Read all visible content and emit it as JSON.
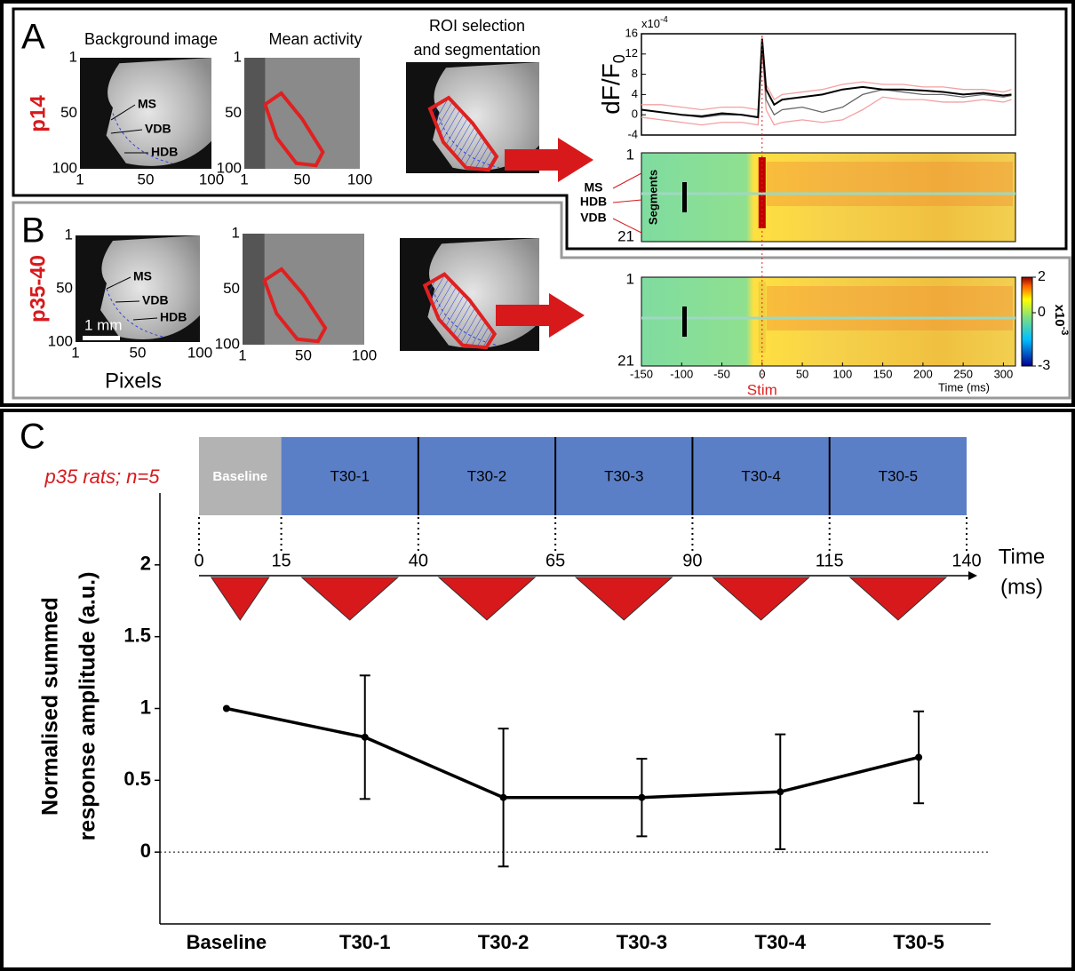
{
  "figure": {
    "panel_labels": [
      "A",
      "B",
      "C"
    ],
    "row_labels": [
      "p14",
      "p35-40"
    ],
    "image_titles": [
      "Background image",
      "Mean activity",
      "ROI selection",
      "and segmentation"
    ],
    "image_axis": [
      "1",
      "50",
      "100"
    ],
    "regions": [
      "MS",
      "VDB",
      "HDB"
    ],
    "scale_bar": "1 mm",
    "pixels_label": "Pixels",
    "heatmap": {
      "y_label": "Segments",
      "rows": [
        "1",
        "21"
      ],
      "segment_labels": [
        "MS",
        "HDB",
        "VDB"
      ],
      "xlim": [
        -150,
        315
      ],
      "xticks": [
        -150,
        -100,
        -50,
        0,
        50,
        100,
        150,
        200,
        250,
        300
      ],
      "x_label": "Time (ms)",
      "stim": "Stim",
      "colorbar": {
        "lim": [
          -3,
          2
        ],
        "ticks": [
          2,
          0,
          -3
        ],
        "label": "x10",
        "exp": "-3"
      }
    }
  },
  "chart_data": [
    {
      "type": "line",
      "ylabel": "dF/F",
      "ylabel_sub": "0",
      "scale": "x10",
      "scale_exp": "-4",
      "x": [
        -150,
        -125,
        -100,
        -75,
        -50,
        -25,
        -5,
        0,
        5,
        15,
        25,
        50,
        75,
        100,
        125,
        150,
        175,
        200,
        225,
        250,
        275,
        300,
        310
      ],
      "xlim": [
        -150,
        315
      ],
      "ylim": [
        -4,
        16
      ],
      "yticks": [
        -4,
        0,
        4,
        8,
        12,
        16
      ],
      "series": [
        {
          "color": "#f4a0a0",
          "values": [
            2,
            2,
            1.5,
            1,
            1.5,
            1.5,
            1,
            15.5,
            6,
            3,
            4,
            4.5,
            5,
            6,
            6.5,
            6,
            6,
            5.5,
            5.5,
            5,
            5,
            4.5,
            5
          ]
        },
        {
          "color": "#f4a0a0",
          "values": [
            -0.5,
            -1,
            -1.5,
            -2,
            -1.5,
            -1.5,
            -2,
            13,
            1,
            -2,
            -1.5,
            -1,
            -1.5,
            -1,
            1,
            3.5,
            3,
            3,
            2.5,
            2.5,
            3,
            2.5,
            3
          ]
        },
        {
          "color": "#666666",
          "values": [
            1,
            0.5,
            0,
            -0.5,
            0,
            0,
            -0.5,
            14,
            3,
            0,
            1,
            1.5,
            0.5,
            1.5,
            4,
            5,
            4.5,
            4,
            4,
            3.5,
            4,
            3.5,
            3.8
          ]
        },
        {
          "color": "#000000",
          "values": [
            1,
            0.5,
            0,
            -0.3,
            0.3,
            0,
            -0.5,
            15,
            5,
            2,
            3,
            3.5,
            4,
            5,
            5.5,
            5,
            5,
            4.8,
            4.5,
            4,
            4.3,
            3.8,
            4
          ]
        }
      ]
    },
    {
      "type": "line",
      "subtitle": "p35 rats; n=5",
      "ylabel": [
        "Normalised summed",
        "response amplitude (a.u.)"
      ],
      "categories": [
        "Baseline",
        "T30-1",
        "T30-2",
        "T30-3",
        "T30-4",
        "T30-5"
      ],
      "values": [
        1,
        0.8,
        0.38,
        0.38,
        0.42,
        0.66
      ],
      "errors": [
        null,
        0.43,
        0.48,
        0.27,
        0.4,
        0.32
      ],
      "color": "#000000",
      "ylim": [
        -0.5,
        2.5
      ],
      "yticks": [
        0,
        0.5,
        1,
        1.5,
        2
      ],
      "timeline": {
        "blocks": [
          "Baseline",
          "T30-1",
          "T30-2",
          "T30-3",
          "T30-4",
          "T30-5"
        ],
        "ticks": [
          0,
          15,
          40,
          65,
          90,
          115,
          140
        ],
        "label": "Time",
        "unit": "(ms)"
      }
    }
  ]
}
